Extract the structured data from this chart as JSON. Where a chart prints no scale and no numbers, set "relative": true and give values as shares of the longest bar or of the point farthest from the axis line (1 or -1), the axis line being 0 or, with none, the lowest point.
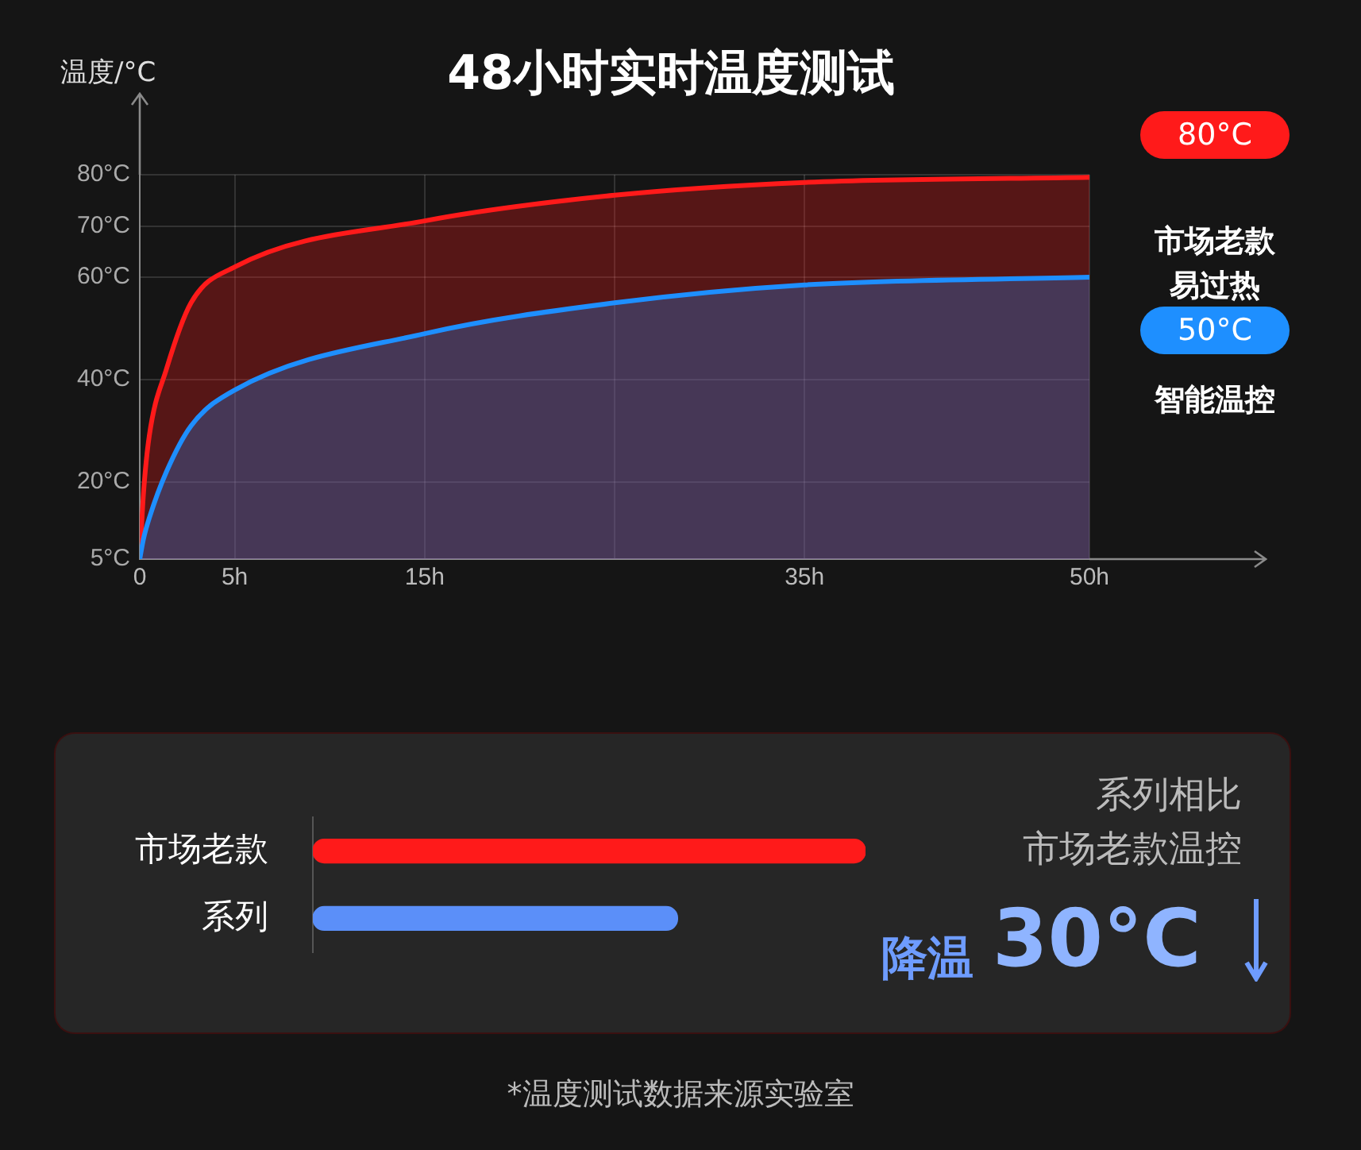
{
  "chart_data": [
    {
      "type": "area",
      "title": "48小时实时温度测试",
      "ylabel": "温度/°C",
      "x": [
        0,
        0.2,
        0.5,
        1.4,
        2.7,
        5,
        15,
        25,
        35,
        50
      ],
      "series": [
        {
          "name": "市场老款易过热",
          "color": "#ff1a1a",
          "values": [
            5,
            18,
            29,
            42,
            55,
            62,
            71,
            76,
            78.5,
            79.5
          ]
        },
        {
          "name": "智能温控",
          "color": "#1e8fff",
          "values": [
            5,
            9,
            13,
            22,
            31,
            38,
            49,
            55,
            58.5,
            60
          ]
        }
      ],
      "xlim": [
        0,
        50
      ],
      "xticks": [
        0,
        {
          "value": 5,
          "label": "5h"
        },
        {
          "value": 15,
          "label": "15h"
        },
        {
          "value": 25,
          "label": null
        },
        {
          "value": 35,
          "label": "35h"
        },
        {
          "value": 50,
          "label": "50h"
        }
      ],
      "ylim": [
        5,
        80
      ],
      "yticks": [
        {
          "value": 5,
          "label": "5°C"
        },
        {
          "value": 20,
          "label": "20°C"
        },
        {
          "value": 40,
          "label": "40°C"
        },
        {
          "value": 60,
          "label": "60°C"
        },
        {
          "value": 70,
          "label": "70°C"
        },
        {
          "value": 80,
          "label": "80°C"
        }
      ],
      "grid": true,
      "legend": "right",
      "annotations": [
        "80°C",
        "50°C",
        "*温度测试数据来源实验室"
      ]
    },
    {
      "type": "bar",
      "orientation": "horizontal",
      "relative": true,
      "categories": [
        "市场老款",
        "系列"
      ],
      "values": [
        1,
        0.66
      ],
      "colors": [
        "#ff1a1a",
        "#5b8ff9"
      ],
      "legend": false,
      "annotations": [
        "系列相比",
        "市场老款温控",
        "降温",
        "30°C"
      ]
    }
  ]
}
